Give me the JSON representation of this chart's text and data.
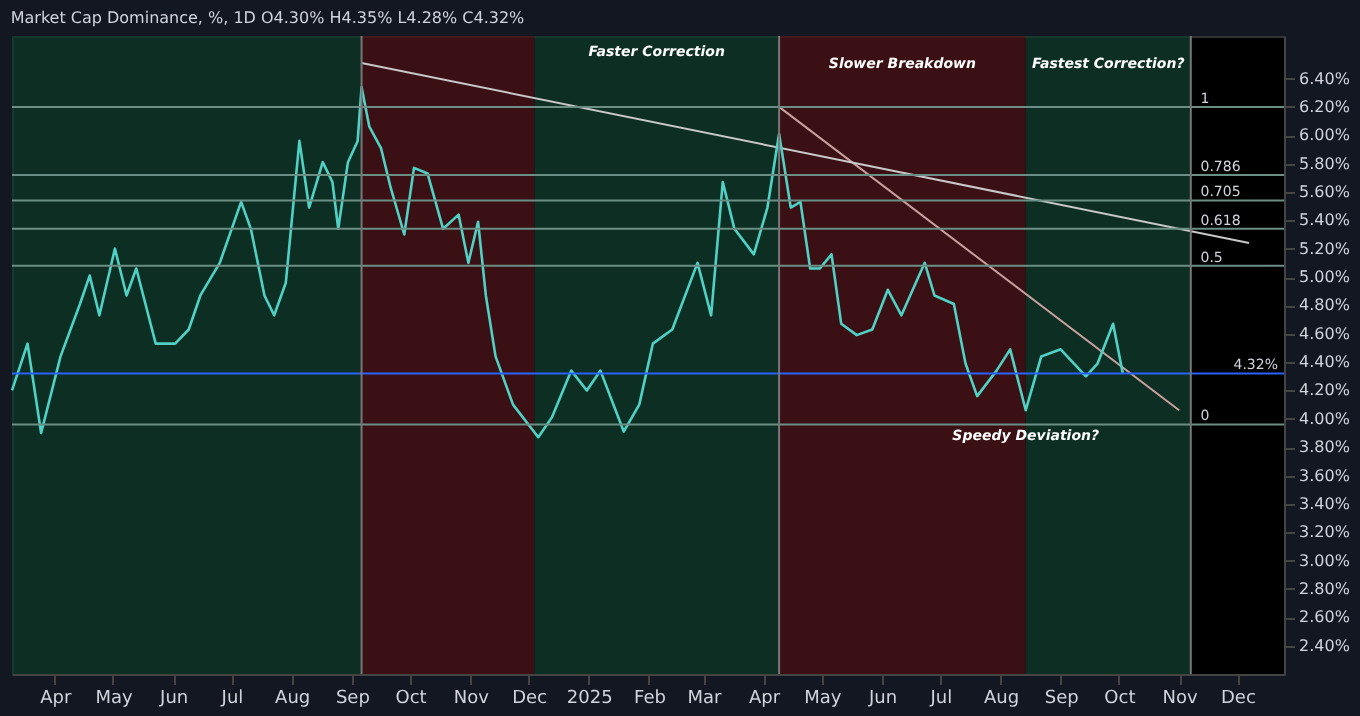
{
  "chart_data": {
    "type": "line",
    "title": "Market Cap Dominance, %, 1D  O4.30% H4.35% L4.28% C4.32%",
    "xlim": [
      "2024-03-10",
      "2025-12-25"
    ],
    "ylim": [
      2.2,
      6.7
    ],
    "xticks": [
      {
        "value": "2024-04-01",
        "label": "Apr"
      },
      {
        "value": "2024-05-01",
        "label": "May"
      },
      {
        "value": "2024-06-01",
        "label": "Jun"
      },
      {
        "value": "2024-07-01",
        "label": "Jul"
      },
      {
        "value": "2024-08-01",
        "label": "Aug"
      },
      {
        "value": "2024-09-01",
        "label": "Sep"
      },
      {
        "value": "2024-10-01",
        "label": "Oct"
      },
      {
        "value": "2024-11-01",
        "label": "Nov"
      },
      {
        "value": "2024-12-01",
        "label": "Dec"
      },
      {
        "value": "2025-01-01",
        "label": "2025"
      },
      {
        "value": "2025-02-01",
        "label": "Feb"
      },
      {
        "value": "2025-03-01",
        "label": "Mar"
      },
      {
        "value": "2025-04-01",
        "label": "Apr"
      },
      {
        "value": "2025-05-01",
        "label": "May"
      },
      {
        "value": "2025-06-01",
        "label": "Jun"
      },
      {
        "value": "2025-07-01",
        "label": "Jul"
      },
      {
        "value": "2025-08-01",
        "label": "Aug"
      },
      {
        "value": "2025-09-01",
        "label": "Sep"
      },
      {
        "value": "2025-10-01",
        "label": "Oct"
      },
      {
        "value": "2025-11-01",
        "label": "Nov"
      },
      {
        "value": "2025-12-01",
        "label": "Dec"
      }
    ],
    "yticks": [
      {
        "value": 2.4,
        "label": "2.40%"
      },
      {
        "value": 2.6,
        "label": "2.60%"
      },
      {
        "value": 2.8,
        "label": "2.80%"
      },
      {
        "value": 3.0,
        "label": "3.00%"
      },
      {
        "value": 3.2,
        "label": "3.20%"
      },
      {
        "value": 3.4,
        "label": "3.40%"
      },
      {
        "value": 3.6,
        "label": "3.60%"
      },
      {
        "value": 3.8,
        "label": "3.80%"
      },
      {
        "value": 4.0,
        "label": "4.00%"
      },
      {
        "value": 4.2,
        "label": "4.20%"
      },
      {
        "value": 4.4,
        "label": "4.40%"
      },
      {
        "value": 4.6,
        "label": "4.60%"
      },
      {
        "value": 4.8,
        "label": "4.80%"
      },
      {
        "value": 5.0,
        "label": "5.00%"
      },
      {
        "value": 5.2,
        "label": "5.20%"
      },
      {
        "value": 5.4,
        "label": "5.40%"
      },
      {
        "value": 5.6,
        "label": "5.60%"
      },
      {
        "value": 5.8,
        "label": "5.80%"
      },
      {
        "value": 6.0,
        "label": "6.00%"
      },
      {
        "value": 6.2,
        "label": "6.20%"
      },
      {
        "value": 6.4,
        "label": "6.40%"
      }
    ],
    "grid": false,
    "series": [
      {
        "color": "#4fd1c5",
        "x": [
          "2024-03-10",
          "2024-03-18",
          "2024-03-25",
          "2024-04-04",
          "2024-04-14",
          "2024-04-19",
          "2024-04-24",
          "2024-05-02",
          "2024-05-08",
          "2024-05-13",
          "2024-05-23",
          "2024-06-02",
          "2024-06-09",
          "2024-06-15",
          "2024-06-25",
          "2024-07-06",
          "2024-07-11",
          "2024-07-18",
          "2024-07-23",
          "2024-07-29",
          "2024-08-05",
          "2024-08-10",
          "2024-08-17",
          "2024-08-22",
          "2024-08-25",
          "2024-08-30",
          "2024-09-04",
          "2024-09-06",
          "2024-09-10",
          "2024-09-16",
          "2024-09-21",
          "2024-09-28",
          "2024-10-03",
          "2024-10-10",
          "2024-10-18",
          "2024-10-26",
          "2024-10-31",
          "2024-11-05",
          "2024-11-09",
          "2024-11-14",
          "2024-11-23",
          "2024-12-06",
          "2024-12-13",
          "2024-12-23",
          "2024-12-31",
          "2025-01-07",
          "2025-01-19",
          "2025-01-27",
          "2025-02-03",
          "2025-02-13",
          "2025-02-26",
          "2025-03-05",
          "2025-03-11",
          "2025-03-17",
          "2025-03-27",
          "2025-04-03",
          "2025-04-09",
          "2025-04-15",
          "2025-04-20",
          "2025-04-25",
          "2025-04-30",
          "2025-05-06",
          "2025-05-11",
          "2025-05-19",
          "2025-05-27",
          "2025-06-04",
          "2025-06-11",
          "2025-06-23",
          "2025-06-28",
          "2025-07-08",
          "2025-07-14",
          "2025-07-20",
          "2025-07-30",
          "2025-08-06",
          "2025-08-14",
          "2025-08-22",
          "2025-09-01",
          "2025-09-14",
          "2025-09-20",
          "2025-09-28",
          "2025-10-03"
        ],
        "values": [
          4.2,
          4.53,
          3.9,
          4.44,
          4.81,
          5.01,
          4.73,
          5.2,
          4.87,
          5.06,
          4.53,
          4.53,
          4.63,
          4.87,
          5.1,
          5.53,
          5.34,
          4.87,
          4.73,
          4.96,
          5.96,
          5.49,
          5.81,
          5.67,
          5.34,
          5.81,
          5.96,
          6.34,
          6.06,
          5.91,
          5.63,
          5.3,
          5.77,
          5.73,
          5.34,
          5.44,
          5.1,
          5.39,
          4.87,
          4.44,
          4.1,
          3.87,
          4.01,
          4.34,
          4.2,
          4.34,
          3.91,
          4.1,
          4.53,
          4.63,
          5.1,
          4.73,
          5.67,
          5.34,
          5.16,
          5.49,
          6.01,
          5.49,
          5.53,
          5.06,
          5.06,
          5.16,
          4.67,
          4.59,
          4.63,
          4.91,
          4.73,
          5.1,
          4.87,
          4.81,
          4.39,
          4.16,
          4.34,
          4.49,
          4.06,
          4.44,
          4.49,
          4.3,
          4.39,
          4.67,
          4.32
        ]
      },
      {
        "color": "#c8c8c8",
        "x": [
          "2024-09-06",
          "2025-12-07"
        ],
        "values": [
          6.51,
          5.24
        ]
      },
      {
        "color": "#c8a0a0",
        "x": [
          "2025-04-09",
          "2025-11-01"
        ],
        "values": [
          6.2,
          4.06
        ]
      }
    ],
    "bands": [
      {
        "axis": "x",
        "from": "2024-03-10",
        "to": "2024-09-06",
        "color": "#0f3a2c"
      },
      {
        "axis": "x",
        "from": "2024-09-06",
        "to": "2024-12-04",
        "color": "#4a1419"
      },
      {
        "axis": "x",
        "from": "2024-12-04",
        "to": "2025-04-09",
        "color": "#0f3a2c"
      },
      {
        "axis": "x",
        "from": "2025-04-09",
        "to": "2025-08-14",
        "color": "#4a1419"
      },
      {
        "axis": "x",
        "from": "2025-08-14",
        "to": "2025-11-07",
        "color": "#0f3a2c"
      }
    ],
    "ref_lines": [
      {
        "axis": "y",
        "value": 6.2,
        "color": "#6b8f84"
      },
      {
        "axis": "y",
        "value": 5.72,
        "color": "#6b8f84"
      },
      {
        "axis": "y",
        "value": 5.54,
        "color": "#6b8f84"
      },
      {
        "axis": "y",
        "value": 5.34,
        "color": "#6b8f84"
      },
      {
        "axis": "y",
        "value": 5.08,
        "color": "#6b8f84"
      },
      {
        "axis": "y",
        "value": 3.96,
        "color": "#6b8f84"
      },
      {
        "axis": "y",
        "value": 4.32,
        "label": "4.32%",
        "color": "#2962ff"
      },
      {
        "axis": "x",
        "value": "2024-09-06",
        "color": "#777777"
      },
      {
        "axis": "x",
        "value": "2025-04-09",
        "color": "#777777"
      },
      {
        "axis": "x",
        "value": "2025-11-07",
        "color": "#777777"
      }
    ],
    "annotations": [
      "Faster Correction",
      "Slower Breakdown",
      "Fastest Correction?",
      {
        "text": "Speedy Deviation?",
        "x": "2025-08-14",
        "y": 3.88
      },
      {
        "text": "1",
        "x": "2025-11-12",
        "y": 6.2
      },
      {
        "text": "0.786",
        "x": "2025-11-12",
        "y": 5.72
      },
      {
        "text": "0.705",
        "x": "2025-11-12",
        "y": 5.54
      },
      {
        "text": "0.618",
        "x": "2025-11-12",
        "y": 5.34
      },
      {
        "text": "0.5",
        "x": "2025-11-12",
        "y": 5.08
      },
      {
        "text": "0",
        "x": "2025-11-12",
        "y": 3.96
      }
    ]
  }
}
